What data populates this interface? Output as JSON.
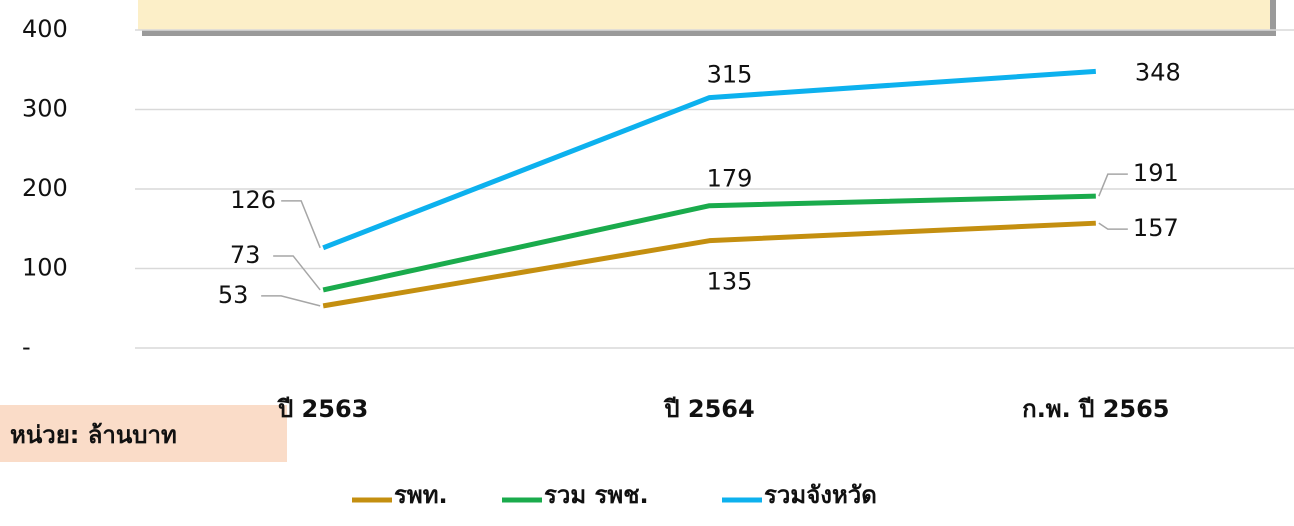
{
  "chart_data": {
    "type": "line",
    "categories": [
      "ปี 2563",
      "ปี 2564",
      "ก.พ. ปี 2565"
    ],
    "series": [
      {
        "name": "รพท.",
        "color": "#c48f10",
        "values": [
          53,
          135,
          157
        ]
      },
      {
        "name": "รวม รพช.",
        "color": "#1aab4c",
        "values": [
          73,
          179,
          191
        ]
      },
      {
        "name": "รวมจังหวัด",
        "color": "#0db1ee",
        "values": [
          126,
          315,
          348
        ]
      }
    ],
    "ylim": [
      0,
      400
    ],
    "yticks": [
      {
        "value": 0,
        "label": "-"
      },
      100,
      200,
      300,
      400
    ],
    "grid": true,
    "legend": "bottom",
    "unit_label": "หน่วย: ล้านบาท"
  }
}
